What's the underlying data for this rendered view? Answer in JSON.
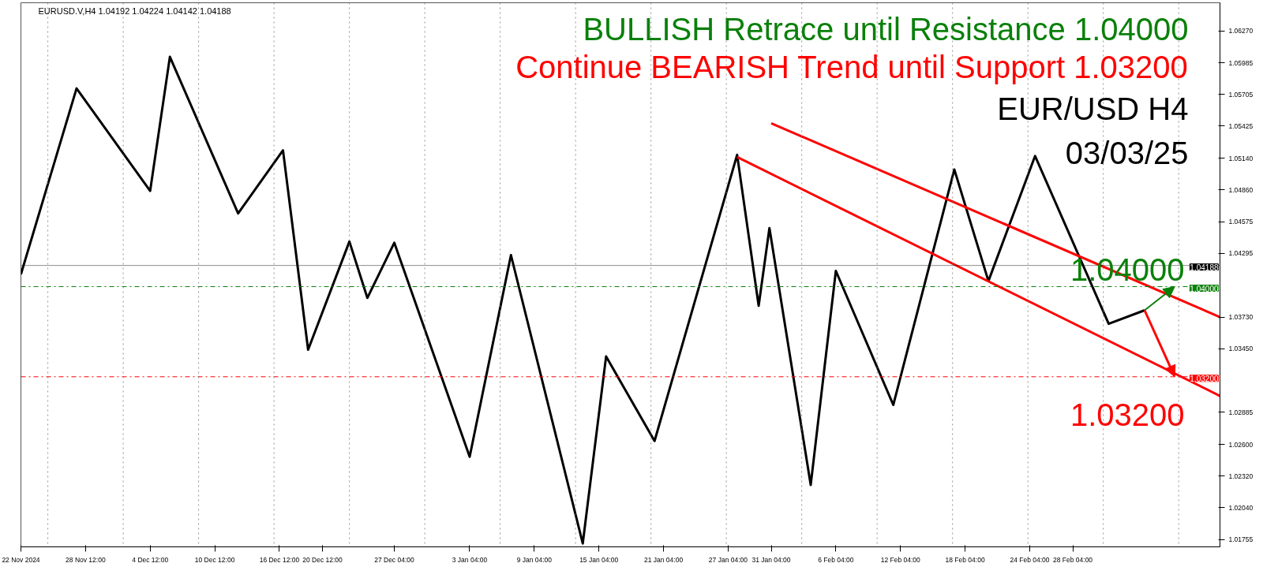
{
  "chart_data": {
    "type": "line",
    "annotations": [
      "EURUSD.V,H4  1.04192 1.04224 1.04142 1.04188",
      "BULLISH Retrace until Resistance 1.04000",
      "Continue BEARISH Trend until Support 1.03200",
      "EUR/USD H4",
      "03/03/25"
    ],
    "series": [
      {
        "color": "#000000",
        "x": [
          "2024-11-22T12:00",
          "2024-11-27T16:00",
          "2024-12-04T12:00",
          "2024-12-06T08:00",
          "2024-12-12T16:00",
          "2024-12-16T20:00",
          "2024-12-19T04:00",
          "2024-12-23T00:00",
          "2024-12-24T16:00",
          "2024-12-27T04:00",
          "2025-01-03T04:00",
          "2025-01-07T00:00",
          "2025-01-13T16:00",
          "2025-01-15T20:00",
          "2025-01-20T08:00",
          "2025-01-28T00:00",
          "2025-01-30T00:00",
          "2025-01-31T00:00",
          "2025-02-03T20:00",
          "2025-02-06T04:00",
          "2025-02-11T12:00",
          "2025-02-17T04:00",
          "2025-02-20T08:00",
          "2025-02-24T16:00",
          "2025-03-03T12:00",
          "2025-03-06T20:00"
        ],
        "values": [
          1.0411,
          1.0576,
          1.0485,
          1.0604,
          1.0465,
          1.0521,
          1.0344,
          1.044,
          1.039,
          1.0439,
          1.0249,
          1.0428,
          1.0172,
          1.0338,
          1.0263,
          1.0517,
          1.0383,
          1.0452,
          1.0224,
          1.0414,
          1.0295,
          1.0504,
          1.0405,
          1.0516,
          1.0367,
          1.0379
        ]
      },
      {
        "color": "#ff0000",
        "x": [
          "2025-01-31T04:00",
          "2025-03-13T20:00"
        ],
        "values": [
          1.0545,
          1.0373
        ]
      },
      {
        "color": "#ff0000",
        "x": [
          "2025-01-28T00:00",
          "2025-03-13T20:00"
        ],
        "values": [
          1.0515,
          1.0303
        ]
      }
    ],
    "xlim": [
      "2024-11-22T12:00",
      "2025-03-13T20:00"
    ],
    "ylim": [
      1.0169,
      1.0652
    ],
    "xticks": [
      {
        "value": "2024-11-22T12:00",
        "label": "22 Nov 2024"
      },
      {
        "value": "2024-11-28T12:00",
        "label": "28 Nov 12:00"
      },
      {
        "value": "2024-12-04T12:00",
        "label": "4 Dec 12:00"
      },
      {
        "value": "2024-12-10T12:00",
        "label": "10 Dec 12:00"
      },
      {
        "value": "2024-12-16T12:00",
        "label": "16 Dec 12:00"
      },
      {
        "value": "2024-12-20T12:00",
        "label": "20 Dec 12:00"
      },
      {
        "value": "2024-12-27T04:00",
        "label": "27 Dec 04:00"
      },
      {
        "value": "2025-01-03T04:00",
        "label": "3 Jan 04:00"
      },
      {
        "value": "2025-01-09T04:00",
        "label": "9 Jan 04:00"
      },
      {
        "value": "2025-01-15T04:00",
        "label": "15 Jan 04:00"
      },
      {
        "value": "2025-01-21T04:00",
        "label": "21 Jan 04:00"
      },
      {
        "value": "2025-01-27T04:00",
        "label": "27 Jan 04:00"
      },
      {
        "value": "2025-01-31T04:00",
        "label": "31 Jan 04:00"
      },
      {
        "value": "2025-02-06T04:00",
        "label": "6 Feb 04:00"
      },
      {
        "value": "2025-02-12T04:00",
        "label": "12 Feb 04:00"
      },
      {
        "value": "2025-02-18T04:00",
        "label": "18 Feb 04:00"
      },
      {
        "value": "2025-02-24T04:00",
        "label": "24 Feb 04:00"
      },
      {
        "value": "2025-02-28T04:00",
        "label": "28 Feb 04:00"
      }
    ],
    "yticks": [
      {
        "value": 1.0627,
        "label": "1.06270"
      },
      {
        "value": 1.05985,
        "label": "1.05985"
      },
      {
        "value": 1.05705,
        "label": "1.05705"
      },
      {
        "value": 1.05425,
        "label": "1.05425"
      },
      {
        "value": 1.0514,
        "label": "1.05140"
      },
      {
        "value": 1.0486,
        "label": "1.04860"
      },
      {
        "value": 1.04575,
        "label": "1.04575"
      },
      {
        "value": 1.04295,
        "label": "1.04295"
      },
      {
        "value": 1.0373,
        "label": "1.03730"
      },
      {
        "value": 1.0345,
        "label": "1.03450"
      },
      {
        "value": 1.02885,
        "label": "1.02885"
      },
      {
        "value": 1.026,
        "label": "1.02600"
      },
      {
        "value": 1.0232,
        "label": "1.02320"
      },
      {
        "value": 1.0204,
        "label": "1.02040"
      },
      {
        "value": 1.01755,
        "label": "1.01755"
      }
    ],
    "ref_lines": [
      {
        "axis": "y",
        "value": 1.04188,
        "label": "1.04188",
        "color": "#000000",
        "line_style": "solid"
      },
      {
        "axis": "y",
        "value": 1.04,
        "label": "1.04000",
        "color": "#0a800a",
        "line_style": "dashdot"
      },
      {
        "axis": "y",
        "value": 1.032,
        "label": "1.03200",
        "color": "#ff0000",
        "line_style": "dashdot"
      },
      {
        "axis": "x",
        "value": "2024-11-25T00:00",
        "line_style": "dotted"
      },
      {
        "axis": "x",
        "value": "2024-12-02T00:00",
        "line_style": "dotted"
      },
      {
        "axis": "x",
        "value": "2024-12-09T00:00",
        "line_style": "dotted"
      },
      {
        "axis": "x",
        "value": "2024-12-16T00:00",
        "line_style": "dotted"
      },
      {
        "axis": "x",
        "value": "2024-12-23T00:00",
        "line_style": "dotted"
      },
      {
        "axis": "x",
        "value": "2024-12-30T00:00",
        "line_style": "dotted"
      },
      {
        "axis": "x",
        "value": "2025-01-06T00:00",
        "line_style": "dotted"
      },
      {
        "axis": "x",
        "value": "2025-01-13T00:00",
        "line_style": "dotted"
      },
      {
        "axis": "x",
        "value": "2025-01-20T00:00",
        "line_style": "dotted"
      },
      {
        "axis": "x",
        "value": "2025-01-27T00:00",
        "line_style": "dotted"
      },
      {
        "axis": "x",
        "value": "2025-02-03T00:00",
        "line_style": "dotted"
      },
      {
        "axis": "x",
        "value": "2025-02-10T00:00",
        "line_style": "dotted"
      },
      {
        "axis": "x",
        "value": "2025-02-17T00:00",
        "line_style": "dotted"
      },
      {
        "axis": "x",
        "value": "2025-02-24T00:00",
        "line_style": "dotted"
      },
      {
        "axis": "x",
        "value": "2025-03-03T00:00",
        "line_style": "dotted"
      },
      {
        "axis": "x",
        "value": "2025-03-10T00:00",
        "line_style": "dotted"
      }
    ],
    "grid": false
  }
}
